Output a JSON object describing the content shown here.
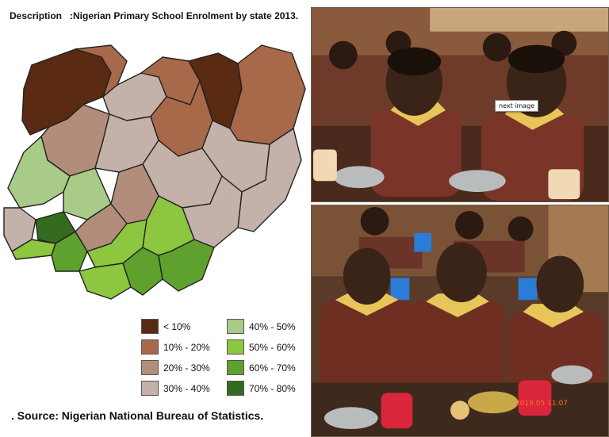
{
  "header": {
    "label": "Description",
    "text": ":Nigerian Primary School Enrolment by state 2013."
  },
  "legend": {
    "items": [
      {
        "label": "< 10%",
        "color": "#5a2a12"
      },
      {
        "label": "10% - 20%",
        "color": "#a7694a"
      },
      {
        "label": "20% - 30%",
        "color": "#b38d7c"
      },
      {
        "label": "30% - 40%",
        "color": "#c4b1aa"
      },
      {
        "label": "40% - 50%",
        "color": "#a8cb88"
      },
      {
        "label": "50% - 60%",
        "color": "#8dc63f"
      },
      {
        "label": "60% - 70%",
        "color": "#5ea12e"
      },
      {
        "label": "70% - 80%",
        "color": "#356b1f"
      }
    ]
  },
  "source": ". Source: Nigerian National Bureau of Statistics.",
  "photos": {
    "tooltip": "next image",
    "timestamp": "2019.05 11:07"
  }
}
